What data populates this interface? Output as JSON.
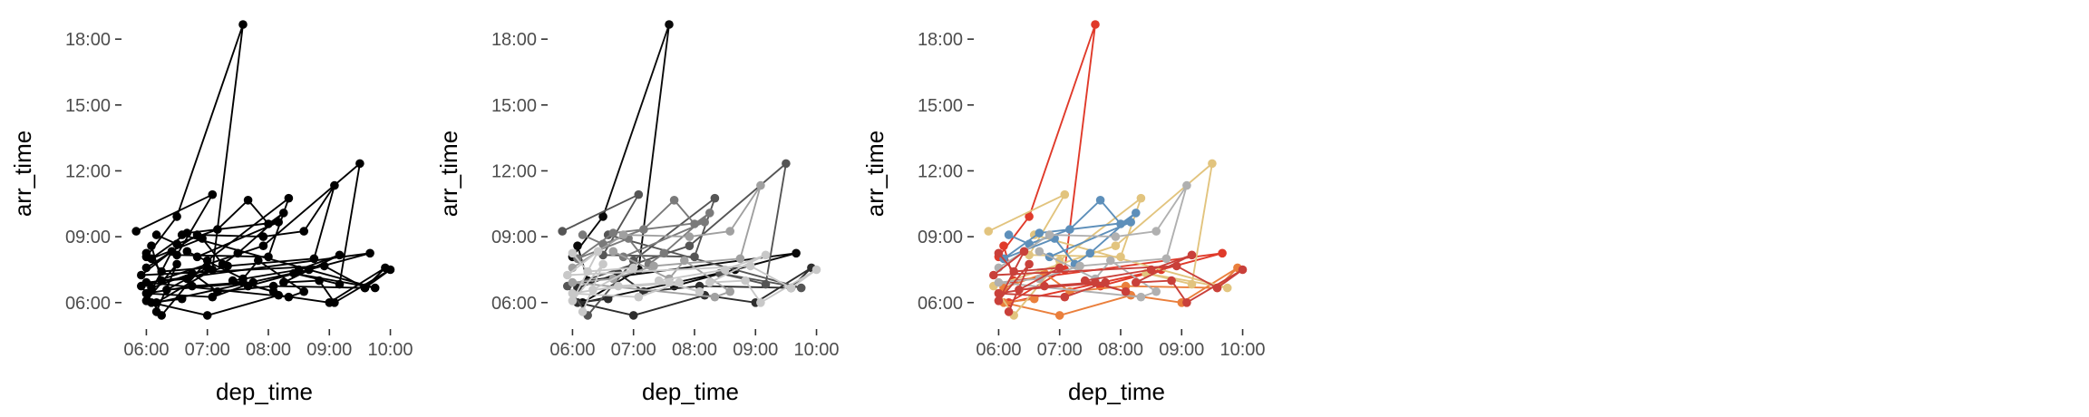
{
  "chart_data": [
    {
      "type": "line",
      "panel": "black",
      "xlabel": "dep_time",
      "ylabel": "arr_time",
      "x_ticks": [
        "06:00",
        "07:00",
        "08:00",
        "09:00",
        "10:00"
      ],
      "y_ticks": [
        "06:00",
        "09:00",
        "12:00",
        "15:00",
        "18:00"
      ],
      "xlim": [
        "05:40",
        "10:12"
      ],
      "ylim": [
        "05:00",
        "18:45"
      ],
      "grid": false,
      "legend": "none",
      "series_colors": [
        "#000000"
      ]
    },
    {
      "type": "line",
      "panel": "grey",
      "xlabel": "dep_time",
      "ylabel": "arr_time",
      "x_ticks": [
        "06:00",
        "07:00",
        "08:00",
        "09:00",
        "10:00"
      ],
      "y_ticks": [
        "06:00",
        "09:00",
        "12:00",
        "15:00",
        "18:00"
      ],
      "xlim": [
        "05:40",
        "10:12"
      ],
      "ylim": [
        "05:00",
        "18:45"
      ],
      "grid": false,
      "legend": "none",
      "series_colors": [
        "#0a0a0a",
        "#2e2e2e",
        "#555555",
        "#7a7a7a",
        "#a0a0a0",
        "#c8c8c8"
      ]
    },
    {
      "type": "line",
      "panel": "color",
      "xlabel": "dep_time",
      "ylabel": "arr_time",
      "x_ticks": [
        "06:00",
        "07:00",
        "08:00",
        "09:00",
        "10:00"
      ],
      "y_ticks": [
        "06:00",
        "09:00",
        "12:00",
        "15:00",
        "18:00"
      ],
      "xlim": [
        "05:40",
        "10:12"
      ],
      "ylim": [
        "05:00",
        "18:45"
      ],
      "grid": false,
      "legend": "none",
      "series_colors": [
        "#e03a2a",
        "#ea7f3c",
        "#e2c47e",
        "#5d8fba",
        "#b0b0b0",
        "#c9403a"
      ]
    }
  ],
  "series": [
    {
      "id": "s1",
      "points": [
        [
          "06:00",
          "08:05"
        ],
        [
          "06:30",
          "09:55"
        ],
        [
          "07:35",
          "18:40"
        ],
        [
          "07:05",
          "07:30"
        ],
        [
          "06:10",
          "06:00"
        ],
        [
          "08:40",
          "07:30"
        ],
        [
          "07:40",
          "06:45"
        ],
        [
          "09:40",
          "08:15"
        ],
        [
          "06:15",
          "07:00"
        ],
        [
          "06:05",
          "08:35"
        ]
      ]
    },
    {
      "id": "s2",
      "points": [
        [
          "06:05",
          "06:40"
        ],
        [
          "06:45",
          "07:20"
        ],
        [
          "07:10",
          "06:30"
        ],
        [
          "08:05",
          "06:45"
        ],
        [
          "09:35",
          "06:40"
        ],
        [
          "09:55",
          "07:35"
        ],
        [
          "09:00",
          "06:00"
        ],
        [
          "08:10",
          "06:20"
        ],
        [
          "07:00",
          "05:25"
        ],
        [
          "06:05",
          "06:00"
        ],
        [
          "06:35",
          "06:10"
        ]
      ]
    },
    {
      "id": "s3",
      "points": [
        [
          "05:50",
          "09:15"
        ],
        [
          "07:05",
          "10:55"
        ],
        [
          "06:30",
          "08:10"
        ],
        [
          "08:00",
          "08:05"
        ],
        [
          "08:20",
          "10:45"
        ],
        [
          "07:00",
          "07:55"
        ],
        [
          "06:15",
          "05:25"
        ],
        [
          "05:55",
          "06:45"
        ],
        [
          "07:55",
          "08:35"
        ],
        [
          "09:30",
          "12:20"
        ],
        [
          "09:10",
          "06:50"
        ],
        [
          "08:25",
          "07:20"
        ],
        [
          "09:45",
          "06:40"
        ],
        [
          "06:35",
          "09:05"
        ]
      ]
    },
    {
      "id": "s4",
      "points": [
        [
          "06:10",
          "09:05"
        ],
        [
          "06:30",
          "08:40"
        ],
        [
          "07:10",
          "09:20"
        ],
        [
          "07:40",
          "10:40"
        ],
        [
          "08:00",
          "09:35"
        ],
        [
          "08:15",
          "10:05"
        ],
        [
          "07:30",
          "08:15"
        ],
        [
          "07:15",
          "07:45"
        ],
        [
          "06:55",
          "08:55"
        ],
        [
          "06:05",
          "08:00"
        ],
        [
          "06:40",
          "09:10"
        ],
        [
          "08:10",
          "09:40"
        ],
        [
          "06:50",
          "08:05"
        ]
      ]
    },
    {
      "id": "s5",
      "points": [
        [
          "06:00",
          "07:35"
        ],
        [
          "06:50",
          "09:05"
        ],
        [
          "07:55",
          "09:00"
        ],
        [
          "08:35",
          "09:15"
        ],
        [
          "09:05",
          "11:20"
        ],
        [
          "08:45",
          "08:00"
        ],
        [
          "07:20",
          "07:40"
        ],
        [
          "06:40",
          "07:05"
        ],
        [
          "06:00",
          "06:55"
        ],
        [
          "08:20",
          "06:15"
        ],
        [
          "08:35",
          "06:30"
        ],
        [
          "07:50",
          "07:55"
        ],
        [
          "07:35",
          "07:05"
        ],
        [
          "06:40",
          "08:20"
        ]
      ]
    },
    {
      "id": "s6",
      "points": [
        [
          "06:00",
          "08:15"
        ],
        [
          "06:15",
          "07:25"
        ],
        [
          "07:00",
          "07:35"
        ],
        [
          "06:20",
          "06:35"
        ],
        [
          "07:45",
          "06:55"
        ],
        [
          "07:05",
          "06:15"
        ],
        [
          "06:00",
          "06:25"
        ],
        [
          "06:45",
          "06:45"
        ],
        [
          "07:35",
          "06:55"
        ],
        [
          "08:05",
          "06:30"
        ],
        [
          "07:25",
          "07:00"
        ],
        [
          "08:30",
          "07:30"
        ],
        [
          "09:10",
          "08:10"
        ],
        [
          "08:15",
          "06:55"
        ],
        [
          "08:50",
          "07:00"
        ],
        [
          "09:05",
          "06:00"
        ],
        [
          "10:00",
          "07:30"
        ],
        [
          "09:35",
          "06:40"
        ],
        [
          "08:55",
          "07:40"
        ],
        [
          "05:55",
          "07:15"
        ],
        [
          "06:25",
          "08:20"
        ],
        [
          "06:00",
          "06:05"
        ],
        [
          "06:30",
          "07:45"
        ],
        [
          "06:10",
          "05:35"
        ]
      ]
    }
  ]
}
